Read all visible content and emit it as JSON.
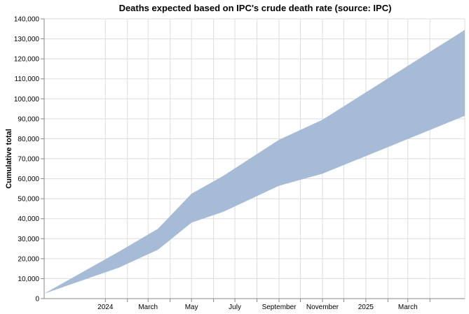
{
  "chart_data": {
    "type": "area",
    "title": "Deaths expected based on IPC's crude death rate (source: IPC)",
    "xlabel": "",
    "ylabel": "Cumulative total",
    "x_type": "date",
    "xlim": [
      "2023-10-07",
      "2025-05-20"
    ],
    "ylim": [
      0,
      140000
    ],
    "x_ticks": [
      {
        "date": "2024-01-01",
        "label": "2024"
      },
      {
        "date": "2024-03-01",
        "label": "March"
      },
      {
        "date": "2024-05-01",
        "label": "May"
      },
      {
        "date": "2024-07-01",
        "label": "July"
      },
      {
        "date": "2024-09-01",
        "label": "September"
      },
      {
        "date": "2024-11-01",
        "label": "November"
      },
      {
        "date": "2025-01-01",
        "label": "2025"
      },
      {
        "date": "2025-03-01",
        "label": "March"
      }
    ],
    "minor_x_gridlines": [
      "2024-02-01",
      "2024-04-01",
      "2024-06-01",
      "2024-08-01",
      "2024-10-01",
      "2024-12-01",
      "2025-02-01",
      "2025-04-01"
    ],
    "y_ticks": [
      0,
      10000,
      20000,
      30000,
      40000,
      50000,
      60000,
      70000,
      80000,
      90000,
      100000,
      110000,
      120000,
      130000,
      140000
    ],
    "grid": true,
    "series": [
      {
        "x": [
          "2023-10-07",
          "2024-01-20",
          "2024-03-15",
          "2024-05-01",
          "2024-06-15",
          "2024-09-01",
          "2024-11-01",
          "2025-05-20"
        ],
        "lower": [
          2500,
          15500,
          24500,
          38000,
          43500,
          56500,
          62500,
          91500
        ],
        "upper": [
          2500,
          23500,
          35000,
          52500,
          61500,
          79500,
          89500,
          134500
        ]
      }
    ],
    "colors": {
      "band": "#a5bbd6"
    }
  }
}
